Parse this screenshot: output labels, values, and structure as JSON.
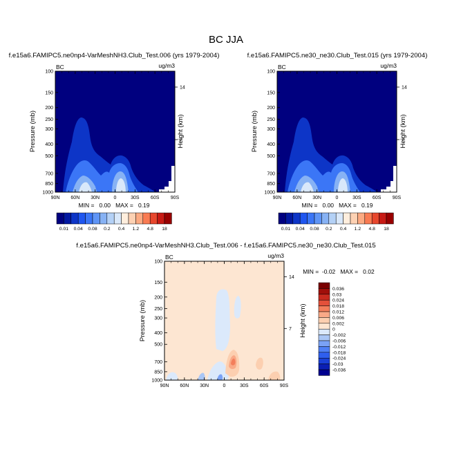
{
  "figure": {
    "title": "BC JJA"
  },
  "colors": {
    "palette": [
      "#00007f",
      "#0218a1",
      "#0d35c7",
      "#1f56ef",
      "#3b76f6",
      "#5f95f6",
      "#87b2f4",
      "#b4d1f6",
      "#d9e8fa",
      "#ffeedd",
      "#fdd1b3",
      "#fcaa82",
      "#f97b52",
      "#e7472d",
      "#c71a14",
      "#980000"
    ],
    "diff_palette": [
      "#00008f",
      "#0a1fb3",
      "#1a40d6",
      "#2f5fee",
      "#4f80f5",
      "#7aa2f5",
      "#a9c6f5",
      "#dbe9fb",
      "#fde6d2",
      "#fccfb0",
      "#f9a987",
      "#f37e5b",
      "#e4503a",
      "#c82a1e",
      "#a00f0a",
      "#7a0000"
    ]
  },
  "chart_data": [
    {
      "type": "heatmap",
      "title": "f.e15a6.FAMIPC5.ne0np4-VarMeshNH3.Club_Test.006 (yrs 1979-2004)",
      "left_label": "BC",
      "units_label": "ug/m3",
      "xlabel": "",
      "ylabel": "Pressure (mb)",
      "ylabel_right": "Height (km)",
      "x_ticks": [
        "90N",
        "60N",
        "30N",
        "0",
        "30S",
        "60S",
        "90S"
      ],
      "y_ticks": [
        "100",
        "150",
        "200",
        "250",
        "300",
        "400",
        "500",
        "700",
        "850",
        "1000"
      ],
      "right_ticks": [
        "14",
        "7"
      ],
      "stats": "MIN =   0.00   MAX =   0.19",
      "levels": [
        "0.01",
        "0.04",
        "0.08",
        "0.2",
        "0.4",
        "1.2",
        "4.8",
        "18"
      ]
    },
    {
      "type": "heatmap",
      "title": "f.e15a6.FAMIPC5.ne30_ne30.Club_Test.015 (yrs 1979-2004)",
      "left_label": "BC",
      "units_label": "ug/m3",
      "xlabel": "",
      "ylabel": "Pressure (mb)",
      "ylabel_right": "Height (km)",
      "x_ticks": [
        "90N",
        "60N",
        "30N",
        "0",
        "30S",
        "60S",
        "90S"
      ],
      "y_ticks": [
        "100",
        "150",
        "200",
        "250",
        "300",
        "400",
        "500",
        "700",
        "850",
        "1000"
      ],
      "right_ticks": [
        "14",
        "7"
      ],
      "stats": "MIN =   0.00   MAX =   0.19",
      "levels": [
        "0.01",
        "0.04",
        "0.08",
        "0.2",
        "0.4",
        "1.2",
        "4.8",
        "18"
      ]
    },
    {
      "type": "heatmap",
      "title": "f.e15a6.FAMIPC5.ne0np4-VarMeshNH3.Club_Test.006 - f.e15a6.FAMIPC5.ne30_ne30.Club_Test.015",
      "left_label": "BC",
      "units_label": "ug/m3",
      "xlabel": "",
      "ylabel": "Pressure (mb)",
      "ylabel_right": "Height (km)",
      "x_ticks": [
        "90N",
        "60N",
        "30N",
        "0",
        "30S",
        "60S",
        "90S"
      ],
      "y_ticks": [
        "100",
        "150",
        "200",
        "250",
        "300",
        "400",
        "500",
        "700",
        "850",
        "1000"
      ],
      "right_ticks": [
        "14",
        "7"
      ],
      "stats": "MIN =  -0.02   MAX =   0.02",
      "levels": [
        "0.036",
        "0.03",
        "0.024",
        "0.018",
        "0.012",
        "0.006",
        "0.002",
        "0",
        "-0.002",
        "-0.006",
        "-0.012",
        "-0.018",
        "-0.024",
        "-0.03",
        "-0.036"
      ]
    }
  ]
}
